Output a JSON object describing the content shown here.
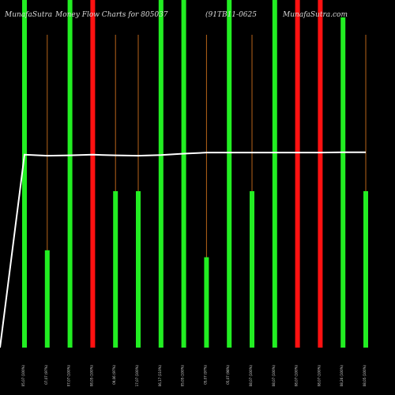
{
  "header": {
    "brand": "MunafaSutra",
    "title": "Money Flow Charts for 805037",
    "symbol": "(91TB11-0625",
    "site": "MunafaSutra.com"
  },
  "colors": {
    "background": "#000000",
    "up": "#22ee22",
    "down": "#ff1111",
    "wick": "#b8651a",
    "line": "#ffffff",
    "text": "#d9d9d9"
  },
  "chart_data": {
    "type": "bar",
    "categories": [
      "05,07 (100%)",
      "07,07 (97%)",
      "07,07 (100%)",
      "08,05 (100%)",
      "09,06 (97%)",
      "17,07 (100%)",
      "06,17 (110%)",
      "05,05 (100%)",
      "05,07 (97%)",
      "05,07 (98%)",
      "08,07 (100%)",
      "08,07 (100%)",
      "08,07 (100%)",
      "08,07 (100%)",
      "08,26 (100%)",
      "08,05 (100%)"
    ],
    "series": [
      {
        "values": [
          100,
          28,
          100,
          100,
          45,
          45,
          100,
          100,
          26,
          100,
          45,
          100,
          100,
          100,
          95,
          45
        ],
        "direction": [
          "up",
          "up",
          "up",
          "down",
          "up",
          "up",
          "up",
          "up",
          "up",
          "up",
          "up",
          "up",
          "down",
          "down",
          "up",
          "up"
        ],
        "wick": [
          90,
          90,
          90,
          90,
          90,
          90,
          90,
          90,
          90,
          90,
          90,
          90,
          90,
          90,
          90,
          90
        ]
      },
      {
        "kind": "line",
        "values": [
          55.5,
          55.2,
          55.3,
          55.5,
          55.3,
          55.2,
          55.4,
          55.8,
          56.1,
          56.1,
          56.1,
          56.1,
          56.1,
          56.1,
          56.2,
          56.2
        ],
        "start_value": 0
      }
    ],
    "ylim": [
      0,
      100
    ],
    "grid": false,
    "legend": "none"
  }
}
